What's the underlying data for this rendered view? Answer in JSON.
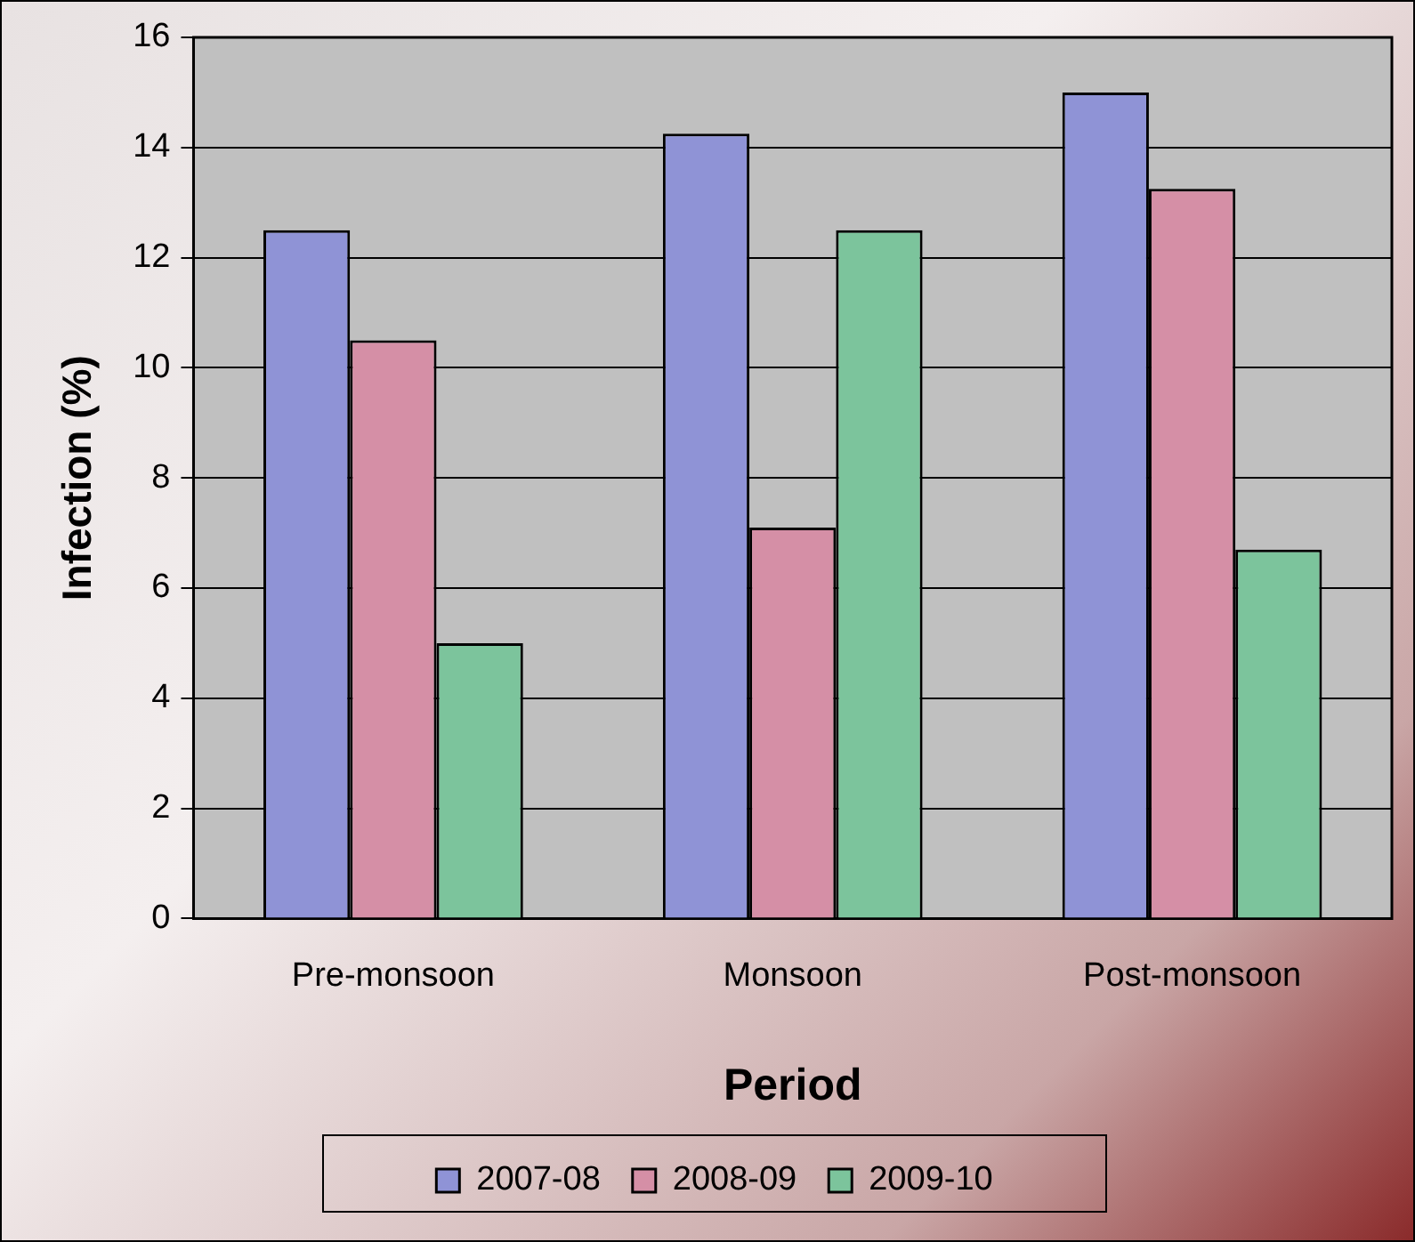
{
  "chart_data": {
    "type": "bar",
    "xlabel": "Period",
    "ylabel": "Infection (%)",
    "categories": [
      "Pre-monsoon",
      "Monsoon",
      "Post-monsoon"
    ],
    "series": [
      {
        "name": "2007-08",
        "color": "#8f93d6",
        "values": [
          12.5,
          14.25,
          15
        ]
      },
      {
        "name": "2008-09",
        "color": "#d58fa6",
        "values": [
          10.5,
          7.1,
          13.25
        ]
      },
      {
        "name": "2009-10",
        "color": "#7cc49c",
        "values": [
          5,
          12.5,
          6.7
        ]
      }
    ],
    "ylim": [
      0,
      16
    ],
    "yticks": [
      0,
      2,
      4,
      6,
      8,
      10,
      12,
      14,
      16
    ],
    "grid": "y",
    "legend": "bottom"
  }
}
